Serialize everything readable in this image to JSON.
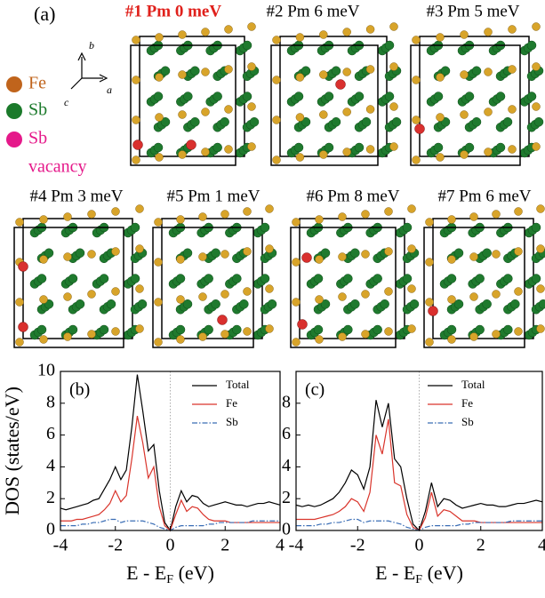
{
  "panel_label": "(a)",
  "axes": {
    "a": "a",
    "b": "b",
    "c": "c"
  },
  "legend": [
    {
      "label": "Fe",
      "color": "#c0641c"
    },
    {
      "label": "Sb",
      "color": "#1b7a2b"
    },
    {
      "label": "Sb",
      "label2": "vacancy",
      "color": "#e5198a"
    }
  ],
  "structures": [
    {
      "title": "#1 Pm 0 meV",
      "highlight": true
    },
    {
      "title": "#2 Pm 6 meV"
    },
    {
      "title": "#3 Pm 5 meV"
    },
    {
      "title": "#4 Pm 3 meV"
    },
    {
      "title": "#5 Pm 1 meV"
    },
    {
      "title": "#6 Pm 8 meV"
    },
    {
      "title": "#7 Pm 6 meV"
    }
  ],
  "chart_data": [
    {
      "type": "line",
      "panel": "(b)",
      "ylabel": "DOS (states/eV)",
      "xlabel": "E - E",
      "xlabel_sub": "F",
      "xlabel_end": " (eV)",
      "xlim": [
        -4,
        4
      ],
      "ylim": [
        0,
        10
      ],
      "xticks": [
        -4,
        -2,
        0,
        2,
        4
      ],
      "yticks": [
        0,
        2,
        4,
        6,
        8,
        10
      ],
      "vline": 0,
      "x": [
        -4,
        -3.8,
        -3.6,
        -3.4,
        -3.2,
        -3,
        -2.8,
        -2.6,
        -2.4,
        -2.2,
        -2,
        -1.8,
        -1.6,
        -1.4,
        -1.2,
        -1,
        -0.8,
        -0.6,
        -0.4,
        -0.2,
        0,
        0.2,
        0.4,
        0.6,
        0.8,
        1,
        1.2,
        1.4,
        1.6,
        1.8,
        2,
        2.2,
        2.4,
        2.6,
        2.8,
        3,
        3.2,
        3.4,
        3.6,
        3.8,
        4
      ],
      "series": [
        {
          "name": "Total",
          "color": "#000000",
          "linestyle": "solid",
          "values": [
            1.4,
            1.3,
            1.4,
            1.5,
            1.6,
            1.7,
            1.9,
            2.0,
            2.6,
            3.2,
            4.0,
            3.2,
            3.8,
            6.5,
            9.8,
            7.5,
            5.0,
            5.4,
            2.5,
            0.5,
            0.0,
            1.5,
            2.5,
            1.8,
            2.2,
            2.1,
            1.7,
            1.5,
            1.6,
            1.7,
            1.8,
            1.7,
            1.6,
            1.6,
            1.5,
            1.6,
            1.7,
            1.7,
            1.8,
            1.7,
            1.6
          ]
        },
        {
          "name": "Fe",
          "color": "#d9342b",
          "linestyle": "solid",
          "values": [
            0.6,
            0.6,
            0.6,
            0.7,
            0.7,
            0.8,
            0.9,
            1.0,
            1.3,
            1.7,
            2.5,
            1.8,
            2.2,
            4.5,
            7.2,
            5.5,
            3.3,
            4.0,
            1.5,
            0.3,
            0.0,
            1.0,
            1.9,
            1.2,
            1.5,
            1.4,
            1.0,
            0.7,
            0.6,
            0.6,
            0.6,
            0.5,
            0.5,
            0.5,
            0.5,
            0.5,
            0.5,
            0.5,
            0.5,
            0.5,
            0.5
          ]
        },
        {
          "name": "Sb",
          "color": "#3a6db5",
          "linestyle": "dashdot",
          "values": [
            0.3,
            0.3,
            0.3,
            0.3,
            0.4,
            0.4,
            0.5,
            0.5,
            0.6,
            0.7,
            0.7,
            0.5,
            0.6,
            0.6,
            0.6,
            0.6,
            0.5,
            0.4,
            0.2,
            0.1,
            0.0,
            0.2,
            0.3,
            0.3,
            0.3,
            0.3,
            0.3,
            0.4,
            0.4,
            0.5,
            0.5,
            0.5,
            0.5,
            0.5,
            0.5,
            0.6,
            0.6,
            0.6,
            0.6,
            0.6,
            0.6
          ]
        }
      ]
    },
    {
      "type": "line",
      "panel": "(c)",
      "xlabel": "E - E",
      "xlabel_sub": "F",
      "xlabel_end": " (eV)",
      "xlim": [
        -4,
        4
      ],
      "ylim": [
        0,
        10
      ],
      "xticks": [
        -4,
        -2,
        0,
        2,
        4
      ],
      "yticks": [
        0,
        2,
        4,
        6,
        8
      ],
      "vline": 0,
      "x": [
        -4,
        -3.8,
        -3.6,
        -3.4,
        -3.2,
        -3,
        -2.8,
        -2.6,
        -2.4,
        -2.2,
        -2,
        -1.8,
        -1.6,
        -1.4,
        -1.2,
        -1,
        -0.8,
        -0.6,
        -0.4,
        -0.2,
        0,
        0.2,
        0.4,
        0.6,
        0.8,
        1,
        1.2,
        1.4,
        1.6,
        1.8,
        2,
        2.2,
        2.4,
        2.6,
        2.8,
        3,
        3.2,
        3.4,
        3.6,
        3.8,
        4
      ],
      "series": [
        {
          "name": "Total",
          "color": "#000000",
          "linestyle": "solid",
          "values": [
            1.6,
            1.5,
            1.6,
            1.5,
            1.6,
            1.8,
            2.0,
            2.4,
            3.0,
            3.8,
            3.5,
            2.6,
            4.0,
            8.2,
            6.5,
            8.0,
            4.5,
            4.0,
            2.0,
            0.4,
            0.0,
            1.2,
            3.0,
            1.5,
            2.0,
            1.9,
            1.6,
            1.4,
            1.5,
            1.6,
            1.7,
            1.6,
            1.6,
            1.5,
            1.5,
            1.6,
            1.7,
            1.7,
            1.8,
            1.9,
            1.8
          ]
        },
        {
          "name": "Fe",
          "color": "#d9342b",
          "linestyle": "solid",
          "values": [
            0.7,
            0.7,
            0.7,
            0.7,
            0.8,
            0.9,
            1.0,
            1.2,
            1.5,
            2.0,
            1.8,
            1.2,
            2.4,
            6.0,
            4.8,
            7.0,
            3.0,
            2.8,
            1.0,
            0.2,
            0.0,
            0.8,
            2.4,
            0.9,
            1.3,
            1.2,
            0.9,
            0.6,
            0.6,
            0.6,
            0.5,
            0.5,
            0.5,
            0.5,
            0.5,
            0.5,
            0.5,
            0.5,
            0.5,
            0.5,
            0.5
          ]
        },
        {
          "name": "Sb",
          "color": "#3a6db5",
          "linestyle": "dashdot",
          "values": [
            0.3,
            0.3,
            0.3,
            0.3,
            0.4,
            0.4,
            0.5,
            0.5,
            0.6,
            0.7,
            0.7,
            0.5,
            0.6,
            0.6,
            0.6,
            0.6,
            0.5,
            0.4,
            0.2,
            0.1,
            0.0,
            0.2,
            0.3,
            0.3,
            0.3,
            0.3,
            0.3,
            0.4,
            0.4,
            0.5,
            0.5,
            0.5,
            0.5,
            0.5,
            0.5,
            0.6,
            0.6,
            0.6,
            0.6,
            0.6,
            0.6
          ]
        }
      ]
    }
  ]
}
